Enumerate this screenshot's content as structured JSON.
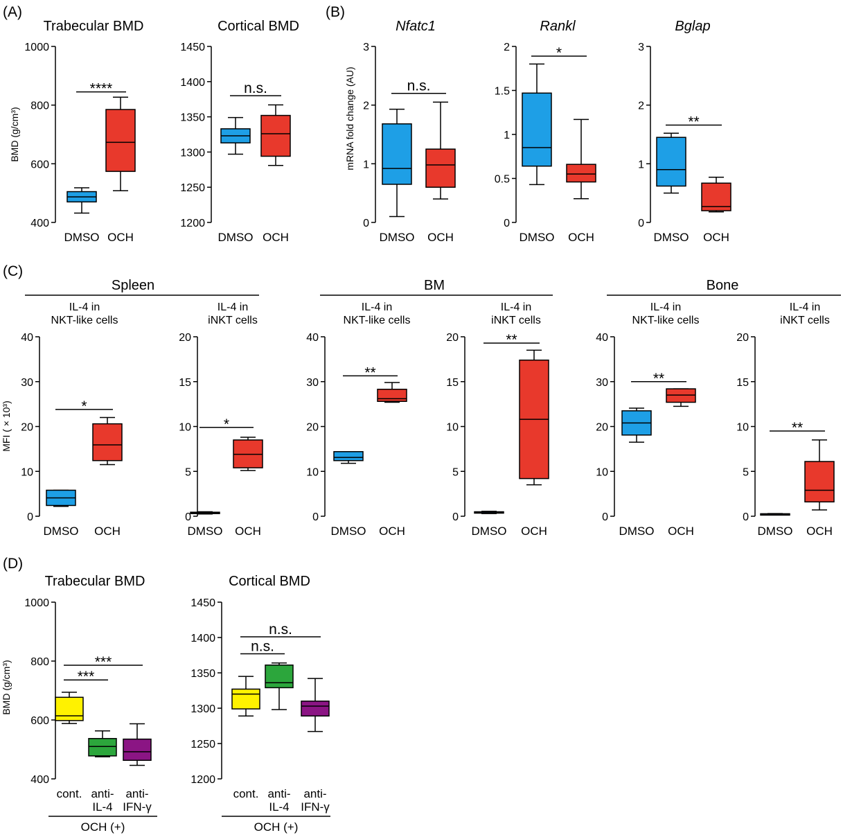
{
  "colors": {
    "DMSO": "#1e9fe6",
    "OCH": "#e8392c",
    "cont": "#fff200",
    "anti-IL-4": "#2ca63c",
    "anti-IFN": "#8b1584"
  },
  "panel_labels": {
    "A": "(A)",
    "B": "(B)",
    "C": "(C)",
    "D": "(D)"
  },
  "groups": {
    "spleen": "Spleen",
    "bm": "BM",
    "bone": "Bone",
    "och_plus": "OCH (+)"
  },
  "chart_data": [
    {
      "id": "a1",
      "type": "box",
      "title": "Trabecular BMD",
      "ylabel": "BMD (g/cm³)",
      "ylim": [
        400,
        1000
      ],
      "yticks": [
        400,
        600,
        800,
        1000
      ],
      "categories": [
        [
          "DMSO"
        ],
        [
          "OCH"
        ]
      ],
      "colors": [
        "DMSO",
        "OCH"
      ],
      "boxes": [
        {
          "min": 432,
          "q1": 470,
          "median": 487,
          "q3": 505,
          "max": 518
        },
        {
          "min": 508,
          "q1": 574,
          "median": 673,
          "q3": 785,
          "max": 827
        }
      ],
      "sig": [
        {
          "from": 0,
          "to": 1,
          "label": "****",
          "y": 845
        }
      ]
    },
    {
      "id": "a2",
      "type": "box",
      "title": "Cortical BMD",
      "ylabel": "",
      "ylim": [
        1200,
        1450
      ],
      "yticks": [
        1200,
        1250,
        1300,
        1350,
        1400,
        1450
      ],
      "categories": [
        [
          "DMSO"
        ],
        [
          "OCH"
        ]
      ],
      "colors": [
        "DMSO",
        "OCH"
      ],
      "boxes": [
        {
          "min": 1297,
          "q1": 1313,
          "median": 1323,
          "q3": 1333,
          "max": 1349
        },
        {
          "min": 1281,
          "q1": 1294,
          "median": 1326,
          "q3": 1352,
          "max": 1367
        }
      ],
      "sig": [
        {
          "from": 0,
          "to": 1,
          "label": "n.s.",
          "y": 1380
        }
      ]
    },
    {
      "id": "b1",
      "type": "box",
      "title": "Nfatc1",
      "italic": true,
      "ylabel": "mRNA fold change (AU)",
      "ylim": [
        0,
        3
      ],
      "yticks": [
        0,
        1,
        2,
        3
      ],
      "categories": [
        [
          "DMSO"
        ],
        [
          "OCH"
        ]
      ],
      "colors": [
        "DMSO",
        "OCH"
      ],
      "boxes": [
        {
          "min": 0.1,
          "q1": 0.65,
          "median": 0.92,
          "q3": 1.68,
          "max": 1.93
        },
        {
          "min": 0.4,
          "q1": 0.6,
          "median": 0.98,
          "q3": 1.25,
          "max": 2.05
        }
      ],
      "sig": [
        {
          "from": 0,
          "to": 1,
          "label": "n.s.",
          "y": 2.2
        }
      ]
    },
    {
      "id": "b2",
      "type": "box",
      "title": "Rankl",
      "italic": true,
      "ylabel": "",
      "ylim": [
        0,
        2
      ],
      "yticks": [
        0,
        0.5,
        1,
        1.5,
        2
      ],
      "categories": [
        [
          "DMSO"
        ],
        [
          "OCH"
        ]
      ],
      "colors": [
        "DMSO",
        "OCH"
      ],
      "boxes": [
        {
          "min": 0.43,
          "q1": 0.64,
          "median": 0.85,
          "q3": 1.47,
          "max": 1.8
        },
        {
          "min": 0.27,
          "q1": 0.46,
          "median": 0.55,
          "q3": 0.66,
          "max": 1.17
        }
      ],
      "sig": [
        {
          "from": 0,
          "to": 1,
          "label": "*",
          "y": 1.89
        }
      ]
    },
    {
      "id": "b3",
      "type": "box",
      "title": "Bglap",
      "italic": true,
      "ylabel": "",
      "ylim": [
        0,
        3
      ],
      "yticks": [
        0,
        1,
        2,
        3
      ],
      "categories": [
        [
          "DMSO"
        ],
        [
          "OCH"
        ]
      ],
      "colors": [
        "DMSO",
        "OCH"
      ],
      "boxes": [
        {
          "min": 0.5,
          "q1": 0.62,
          "median": 0.9,
          "q3": 1.45,
          "max": 1.52
        },
        {
          "min": 0.18,
          "q1": 0.2,
          "median": 0.27,
          "q3": 0.67,
          "max": 0.77
        }
      ],
      "sig": [
        {
          "from": 0,
          "to": 1,
          "label": "**",
          "y": 1.66
        }
      ]
    },
    {
      "id": "c1",
      "type": "box",
      "title": "",
      "subtitle": [
        "IL-4 in",
        "NKT-like cells"
      ],
      "ylabel": "MFI ( × 10³)",
      "ylim": [
        0,
        40
      ],
      "yticks": [
        0,
        10,
        20,
        30,
        40
      ],
      "categories": [
        [
          "DMSO"
        ],
        [
          "OCH"
        ]
      ],
      "colors": [
        "DMSO",
        "OCH"
      ],
      "boxes": [
        {
          "min": 2.2,
          "q1": 2.4,
          "median": 4.1,
          "q3": 5.8,
          "max": 5.8
        },
        {
          "min": 11.5,
          "q1": 12.4,
          "median": 15.9,
          "q3": 20.6,
          "max": 22
        }
      ],
      "sig": [
        {
          "from": 0,
          "to": 1,
          "label": "*",
          "y": 23.8
        }
      ]
    },
    {
      "id": "c2",
      "type": "box",
      "title": "",
      "subtitle": [
        "IL-4 in",
        "iNKT cells"
      ],
      "ylabel": "",
      "ylim": [
        0,
        20
      ],
      "yticks": [
        0,
        5,
        10,
        15,
        20
      ],
      "categories": [
        [
          "DMSO"
        ],
        [
          "OCH"
        ]
      ],
      "colors": [
        "DMSO",
        "OCH"
      ],
      "boxes": [
        {
          "min": 0.25,
          "q1": 0.3,
          "median": 0.38,
          "q3": 0.45,
          "max": 0.5
        },
        {
          "min": 5.1,
          "q1": 5.4,
          "median": 6.9,
          "q3": 8.5,
          "max": 8.8
        }
      ],
      "sig": [
        {
          "from": 0,
          "to": 1,
          "label": "*",
          "y": 9.9
        }
      ]
    },
    {
      "id": "c3",
      "type": "box",
      "title": "",
      "subtitle": [
        "IL-4 in",
        "NKT-like cells"
      ],
      "ylabel": "",
      "ylim": [
        0,
        40
      ],
      "yticks": [
        0,
        10,
        20,
        30,
        40
      ],
      "categories": [
        [
          "DMSO"
        ],
        [
          "OCH"
        ]
      ],
      "colors": [
        "DMSO",
        "OCH"
      ],
      "boxes": [
        {
          "min": 11.8,
          "q1": 12.4,
          "median": 13.1,
          "q3": 14.4,
          "max": 14.4
        },
        {
          "min": 25.4,
          "q1": 25.6,
          "median": 26.2,
          "q3": 28.3,
          "max": 29.8
        }
      ],
      "sig": [
        {
          "from": 0,
          "to": 1,
          "label": "**",
          "y": 31.3
        }
      ]
    },
    {
      "id": "c4",
      "type": "box",
      "title": "",
      "subtitle": [
        "IL-4 in",
        "iNKT cells"
      ],
      "ylabel": "",
      "ylim": [
        0,
        20
      ],
      "yticks": [
        0,
        5,
        10,
        15,
        20
      ],
      "categories": [
        [
          "DMSO"
        ],
        [
          "OCH"
        ]
      ],
      "colors": [
        "DMSO",
        "OCH"
      ],
      "boxes": [
        {
          "min": 0.3,
          "q1": 0.35,
          "median": 0.45,
          "q3": 0.5,
          "max": 0.55
        },
        {
          "min": 3.5,
          "q1": 4.2,
          "median": 10.8,
          "q3": 17.4,
          "max": 18.5
        }
      ],
      "sig": [
        {
          "from": 0,
          "to": 1,
          "label": "**",
          "y": 19.3
        }
      ]
    },
    {
      "id": "c5",
      "type": "box",
      "title": "",
      "subtitle": [
        "IL-4 in",
        "NKT-like cells"
      ],
      "ylabel": "",
      "ylim": [
        0,
        40
      ],
      "yticks": [
        0,
        10,
        20,
        30,
        40
      ],
      "categories": [
        [
          "DMSO"
        ],
        [
          "OCH"
        ]
      ],
      "colors": [
        "DMSO",
        "OCH"
      ],
      "boxes": [
        {
          "min": 16.5,
          "q1": 18.1,
          "median": 20.8,
          "q3": 23.5,
          "max": 24.1
        },
        {
          "min": 24.5,
          "q1": 25.4,
          "median": 27,
          "q3": 28.4,
          "max": 28.4
        }
      ],
      "sig": [
        {
          "from": 0,
          "to": 1,
          "label": "**",
          "y": 30
        }
      ]
    },
    {
      "id": "c6",
      "type": "box",
      "title": "",
      "subtitle": [
        "IL-4 in",
        "iNKT cells"
      ],
      "ylabel": "",
      "ylim": [
        0,
        20
      ],
      "yticks": [
        0,
        5,
        10,
        15,
        20
      ],
      "categories": [
        [
          "DMSO"
        ],
        [
          "OCH"
        ]
      ],
      "colors": [
        "DMSO",
        "OCH"
      ],
      "boxes": [
        {
          "min": 0.2,
          "q1": 0.22,
          "median": 0.25,
          "q3": 0.28,
          "max": 0.3
        },
        {
          "min": 0.7,
          "q1": 1.6,
          "median": 2.9,
          "q3": 6.1,
          "max": 8.5
        }
      ],
      "sig": [
        {
          "from": 0,
          "to": 1,
          "label": "**",
          "y": 9.5
        }
      ]
    },
    {
      "id": "d1",
      "type": "box",
      "title": "Trabecular BMD",
      "ylabel": "BMD (g/cm³)",
      "ylim": [
        400,
        1000
      ],
      "yticks": [
        400,
        600,
        800,
        1000
      ],
      "categories": [
        [
          "cont."
        ],
        [
          "anti-",
          "IL-4"
        ],
        [
          "anti-",
          "IFN-γ"
        ]
      ],
      "colors": [
        "cont",
        "anti-IL-4",
        "anti-IFN"
      ],
      "boxes": [
        {
          "min": 588,
          "q1": 598,
          "median": 614,
          "q3": 677,
          "max": 694
        },
        {
          "min": 475,
          "q1": 478,
          "median": 510,
          "q3": 537,
          "max": 563
        },
        {
          "min": 446,
          "q1": 463,
          "median": 492,
          "q3": 535,
          "max": 587
        }
      ],
      "sig": [
        {
          "from": 0,
          "to": 1,
          "label": "***",
          "y": 736
        },
        {
          "from": 0,
          "to": 2,
          "label": "***",
          "y": 786
        }
      ],
      "underline": "OCH (+)"
    },
    {
      "id": "d2",
      "type": "box",
      "title": "Cortical BMD",
      "ylabel": "",
      "ylim": [
        1200,
        1450
      ],
      "yticks": [
        1200,
        1250,
        1300,
        1350,
        1400,
        1450
      ],
      "categories": [
        [
          "cont."
        ],
        [
          "anti-",
          "IL-4"
        ],
        [
          "anti-",
          "IFN-γ"
        ]
      ],
      "colors": [
        "cont",
        "anti-IL-4",
        "anti-IFN"
      ],
      "boxes": [
        {
          "min": 1289,
          "q1": 1299,
          "median": 1320,
          "q3": 1327,
          "max": 1345
        },
        {
          "min": 1298,
          "q1": 1329,
          "median": 1336,
          "q3": 1361,
          "max": 1364
        },
        {
          "min": 1267,
          "q1": 1289,
          "median": 1303,
          "q3": 1310,
          "max": 1342
        }
      ],
      "sig": [
        {
          "from": 0,
          "to": 1,
          "label": "n.s.",
          "y": 1377
        },
        {
          "from": 0,
          "to": 2,
          "label": "n.s.",
          "y": 1401
        }
      ],
      "underline": "OCH (+)"
    }
  ]
}
